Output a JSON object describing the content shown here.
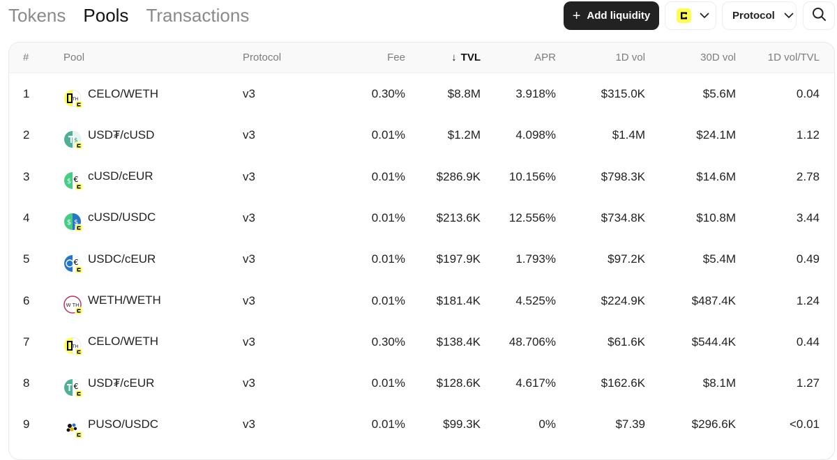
{
  "tabs": [
    {
      "label": "Tokens",
      "active": false
    },
    {
      "label": "Pools",
      "active": true
    },
    {
      "label": "Transactions",
      "active": false
    }
  ],
  "toolbar": {
    "add_liquidity_label": "Add liquidity",
    "chain_icon": "celo-chain-icon",
    "protocol_label": "Protocol"
  },
  "colors": {
    "accent_dark": "#222222",
    "celo_yellow": "#fcff52",
    "header_bg": "#f9f9f9",
    "muted_text": "#7d7d7d"
  },
  "table": {
    "columns": {
      "num": "#",
      "pool": "Pool",
      "protocol": "Protocol",
      "fee": "Fee",
      "tvl": "TVL",
      "apr": "APR",
      "vol_1d": "1D vol",
      "vol_30d": "30D vol",
      "vol_tvl": "1D vol/TVL"
    },
    "sorted_by": "TVL",
    "sort_direction": "descending",
    "rows": [
      {
        "num": "1",
        "pool": "CELO/WETH",
        "icon": "celo-weth-pair-icon",
        "protocol": "v3",
        "fee": "0.30%",
        "tvl": "$8.8M",
        "apr": "3.918%",
        "vol_1d": "$315.0K",
        "vol_30d": "$5.6M",
        "vol_tvl": "0.04"
      },
      {
        "num": "2",
        "pool": "USD₮/cUSD",
        "icon": "usdt-cusd-pair-icon",
        "protocol": "v3",
        "fee": "0.01%",
        "tvl": "$1.2M",
        "apr": "4.098%",
        "vol_1d": "$1.4M",
        "vol_30d": "$24.1M",
        "vol_tvl": "1.12"
      },
      {
        "num": "3",
        "pool": "cUSD/cEUR",
        "icon": "cusd-ceur-pair-icon",
        "protocol": "v3",
        "fee": "0.01%",
        "tvl": "$286.9K",
        "apr": "10.156%",
        "vol_1d": "$798.3K",
        "vol_30d": "$14.6M",
        "vol_tvl": "2.78"
      },
      {
        "num": "4",
        "pool": "cUSD/USDC",
        "icon": "cusd-usdc-pair-icon",
        "protocol": "v3",
        "fee": "0.01%",
        "tvl": "$213.6K",
        "apr": "12.556%",
        "vol_1d": "$734.8K",
        "vol_30d": "$10.8M",
        "vol_tvl": "3.44"
      },
      {
        "num": "5",
        "pool": "USDC/cEUR",
        "icon": "usdc-ceur-pair-icon",
        "protocol": "v3",
        "fee": "0.01%",
        "tvl": "$197.9K",
        "apr": "1.793%",
        "vol_1d": "$97.2K",
        "vol_30d": "$5.4M",
        "vol_tvl": "0.49"
      },
      {
        "num": "6",
        "pool": "WETH/WETH",
        "icon": "weth-weth-pair-icon",
        "protocol": "v3",
        "fee": "0.01%",
        "tvl": "$181.4K",
        "apr": "4.525%",
        "vol_1d": "$224.9K",
        "vol_30d": "$487.4K",
        "vol_tvl": "1.24"
      },
      {
        "num": "7",
        "pool": "CELO/WETH",
        "icon": "celo-weth-pair-icon",
        "protocol": "v3",
        "fee": "0.30%",
        "tvl": "$138.4K",
        "apr": "48.706%",
        "vol_1d": "$61.6K",
        "vol_30d": "$544.4K",
        "vol_tvl": "0.44"
      },
      {
        "num": "8",
        "pool": "USD₮/cEUR",
        "icon": "usdt-ceur-pair-icon",
        "protocol": "v3",
        "fee": "0.01%",
        "tvl": "$128.6K",
        "apr": "4.617%",
        "vol_1d": "$162.6K",
        "vol_30d": "$8.1M",
        "vol_tvl": "1.27"
      },
      {
        "num": "9",
        "pool": "PUSO/USDC",
        "icon": "puso-usdc-pair-icon",
        "protocol": "v3",
        "fee": "0.01%",
        "tvl": "$99.3K",
        "apr": "0%",
        "vol_1d": "$7.39",
        "vol_30d": "$296.6K",
        "vol_tvl": "<0.01"
      }
    ]
  }
}
